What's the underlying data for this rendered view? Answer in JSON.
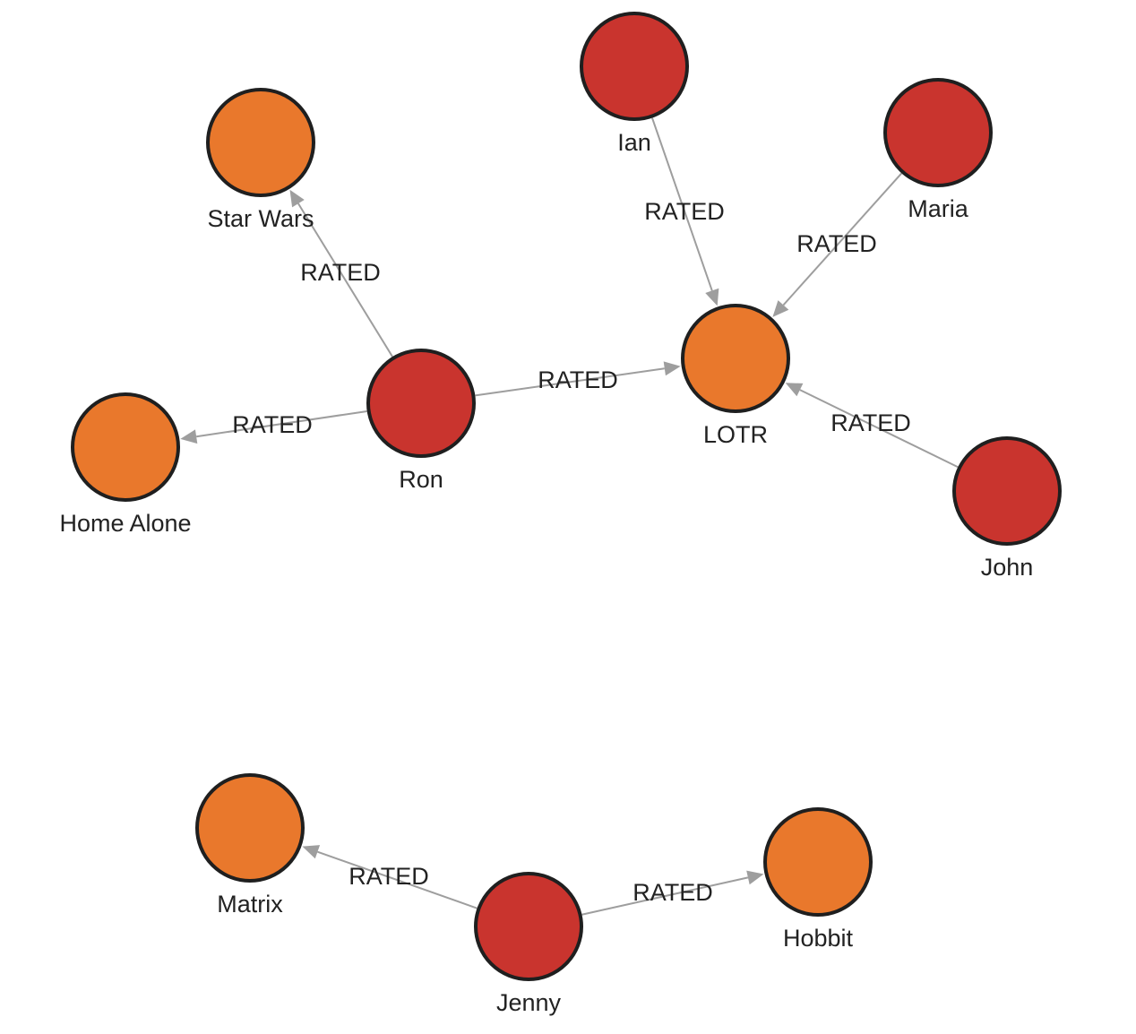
{
  "colors": {
    "person": "#c9342e",
    "movie": "#e9782c",
    "edge": "#9e9e9e",
    "outline": "#1f1f1f"
  },
  "nodes": [
    {
      "id": "ian",
      "label": "Ian",
      "kind": "person"
    },
    {
      "id": "maria",
      "label": "Maria",
      "kind": "person"
    },
    {
      "id": "ron",
      "label": "Ron",
      "kind": "person"
    },
    {
      "id": "john",
      "label": "John",
      "kind": "person"
    },
    {
      "id": "jenny",
      "label": "Jenny",
      "kind": "person"
    },
    {
      "id": "starwars",
      "label": "Star Wars",
      "kind": "movie"
    },
    {
      "id": "homealone",
      "label": "Home Alone",
      "kind": "movie"
    },
    {
      "id": "lotr",
      "label": "LOTR",
      "kind": "movie"
    },
    {
      "id": "matrix",
      "label": "Matrix",
      "kind": "movie"
    },
    {
      "id": "hobbit",
      "label": "Hobbit",
      "kind": "movie"
    }
  ],
  "edges": [
    {
      "from": "ron",
      "to": "starwars",
      "label": "RATED"
    },
    {
      "from": "ron",
      "to": "homealone",
      "label": "RATED"
    },
    {
      "from": "ron",
      "to": "lotr",
      "label": "RATED"
    },
    {
      "from": "ian",
      "to": "lotr",
      "label": "RATED"
    },
    {
      "from": "maria",
      "to": "lotr",
      "label": "RATED"
    },
    {
      "from": "john",
      "to": "lotr",
      "label": "RATED"
    },
    {
      "from": "jenny",
      "to": "matrix",
      "label": "RATED"
    },
    {
      "from": "jenny",
      "to": "hobbit",
      "label": "RATED"
    }
  ]
}
